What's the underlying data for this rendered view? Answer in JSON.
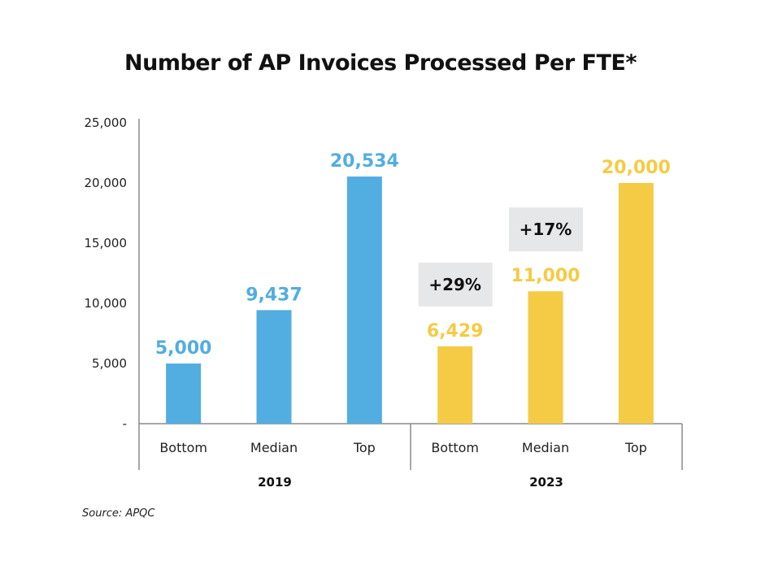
{
  "chart_data": {
    "type": "bar",
    "title": "Number of AP Invoices Processed Per FTE*",
    "groups": [
      {
        "name": "2019",
        "color": "#52ade0",
        "categories": [
          "Bottom",
          "Median",
          "Top"
        ],
        "values": [
          5000,
          9437,
          20534
        ],
        "labels": [
          "5,000",
          "9,437",
          "20,534"
        ]
      },
      {
        "name": "2023",
        "color": "#f5cb45",
        "categories": [
          "Bottom",
          "Median",
          "Top"
        ],
        "values": [
          6429,
          11000,
          20000
        ],
        "labels": [
          "6,429",
          "11,000",
          "20,000"
        ]
      }
    ],
    "annotations": [
      {
        "group": 1,
        "category": 0,
        "text": "+29%"
      },
      {
        "group": 1,
        "category": 1,
        "text": "+17%"
      }
    ],
    "annotation_bg": "#e6e7e9",
    "yticks": [
      0,
      5000,
      10000,
      15000,
      20000,
      25000
    ],
    "ytick_labels": [
      "-",
      "5,000",
      "10,000",
      "15,000",
      "20,000",
      "25,000"
    ],
    "ylim": [
      0,
      25000
    ],
    "grid": false,
    "xlabel": "",
    "ylabel": ""
  },
  "source": "Source: APQC"
}
